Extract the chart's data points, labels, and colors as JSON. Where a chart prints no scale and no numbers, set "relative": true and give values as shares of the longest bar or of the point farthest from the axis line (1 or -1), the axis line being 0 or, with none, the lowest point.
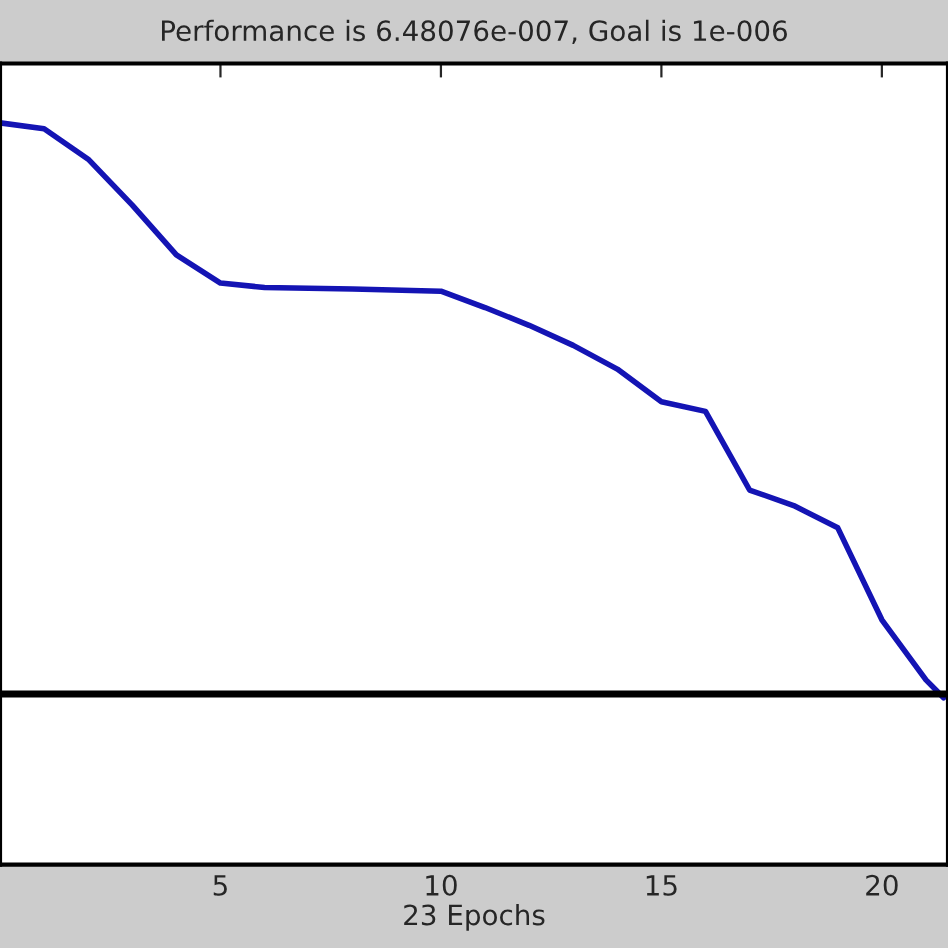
{
  "chart_data": {
    "type": "line",
    "title": "Performance is 6.48076e-007, Goal is 1e-006",
    "xlabel": "23 Epochs",
    "relative": true,
    "x": [
      0,
      1,
      2,
      3,
      4,
      5,
      6,
      8,
      10,
      11,
      12,
      13,
      14,
      15,
      16,
      17,
      18,
      19,
      20,
      21,
      21.4
    ],
    "series": [
      {
        "color": "#1414b4",
        "values": [
          1,
          0.992,
          0.951,
          0.889,
          0.822,
          0.784,
          0.778,
          0.776,
          0.773,
          0.751,
          0.727,
          0.7,
          0.668,
          0.624,
          0.611,
          0.505,
          0.484,
          0.454,
          0.33,
          0.249,
          0.225
        ]
      }
    ],
    "xlim": [
      0,
      21.5
    ],
    "xticks": [
      5,
      10,
      15,
      20
    ],
    "tick_labels": "x",
    "ref_lines": [
      {
        "axis": "y",
        "value": 0.23,
        "color": "#000000"
      }
    ],
    "grid": false,
    "legend": false
  }
}
